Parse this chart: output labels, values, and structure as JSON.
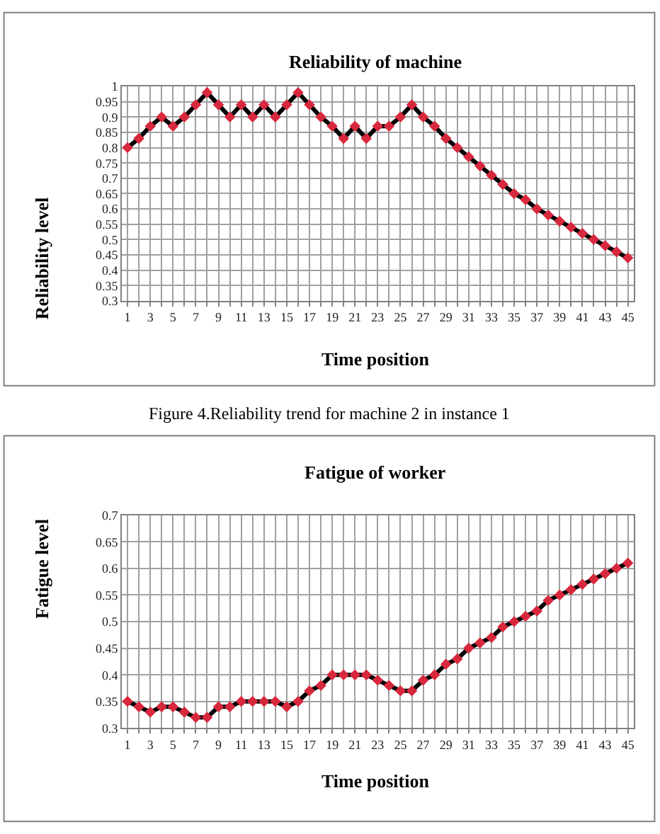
{
  "chart_data": [
    {
      "type": "line",
      "title": "Reliability of machine",
      "xlabel": "Time position",
      "ylabel": "Reliability level",
      "x": [
        1,
        2,
        3,
        4,
        5,
        6,
        7,
        8,
        9,
        10,
        11,
        12,
        13,
        14,
        15,
        16,
        17,
        18,
        19,
        20,
        21,
        22,
        23,
        24,
        25,
        26,
        27,
        28,
        29,
        30,
        31,
        32,
        33,
        34,
        35,
        36,
        37,
        38,
        39,
        40,
        41,
        42,
        43,
        44,
        45
      ],
      "series": [
        {
          "color": "#d8283e",
          "values": [
            0.8,
            0.83,
            0.87,
            0.9,
            0.87,
            0.9,
            0.94,
            0.98,
            0.94,
            0.9,
            0.94,
            0.9,
            0.94,
            0.9,
            0.94,
            0.98,
            0.94,
            0.9,
            0.87,
            0.83,
            0.87,
            0.83,
            0.87,
            0.87,
            0.9,
            0.94,
            0.9,
            0.87,
            0.83,
            0.8,
            0.77,
            0.74,
            0.71,
            0.68,
            0.65,
            0.63,
            0.6,
            0.58,
            0.56,
            0.54,
            0.52,
            0.5,
            0.48,
            0.46,
            0.44
          ]
        }
      ],
      "xlim": [
        0.5,
        45.5
      ],
      "xticks": [
        1,
        {
          "value": 2,
          "label": null
        },
        3,
        {
          "value": 4,
          "label": null
        },
        5,
        {
          "value": 6,
          "label": null
        },
        7,
        {
          "value": 8,
          "label": null
        },
        9,
        {
          "value": 10,
          "label": null
        },
        11,
        {
          "value": 12,
          "label": null
        },
        13,
        {
          "value": 14,
          "label": null
        },
        15,
        {
          "value": 16,
          "label": null
        },
        17,
        {
          "value": 18,
          "label": null
        },
        19,
        {
          "value": 20,
          "label": null
        },
        21,
        {
          "value": 22,
          "label": null
        },
        23,
        {
          "value": 24,
          "label": null
        },
        25,
        {
          "value": 26,
          "label": null
        },
        27,
        {
          "value": 28,
          "label": null
        },
        29,
        {
          "value": 30,
          "label": null
        },
        31,
        {
          "value": 32,
          "label": null
        },
        33,
        {
          "value": 34,
          "label": null
        },
        35,
        {
          "value": 36,
          "label": null
        },
        37,
        {
          "value": 38,
          "label": null
        },
        39,
        {
          "value": 40,
          "label": null
        },
        41,
        {
          "value": 42,
          "label": null
        },
        43,
        {
          "value": 44,
          "label": null
        },
        45
      ],
      "ylim": [
        0.3,
        1
      ],
      "yticks": [
        0.3,
        0.35,
        0.4,
        0.45,
        0.5,
        0.55,
        0.6,
        0.65,
        0.7,
        0.75,
        0.8,
        0.85,
        0.9,
        0.95,
        1
      ],
      "grid": true,
      "marker": "diamond",
      "line_style": "solid",
      "annotations": [
        "Figure 4.Reliability trend for machine 2 in instance 1"
      ]
    },
    {
      "type": "line",
      "title": "Fatigue of worker",
      "xlabel": "Time position",
      "ylabel": "Fatigue level",
      "x": [
        1,
        2,
        3,
        4,
        5,
        6,
        7,
        8,
        9,
        10,
        11,
        12,
        13,
        14,
        15,
        16,
        17,
        18,
        19,
        20,
        21,
        22,
        23,
        24,
        25,
        26,
        27,
        28,
        29,
        30,
        31,
        32,
        33,
        34,
        35,
        36,
        37,
        38,
        39,
        40,
        41,
        42,
        43,
        44,
        45
      ],
      "series": [
        {
          "color": "#d8283e",
          "values": [
            0.35,
            0.34,
            0.33,
            0.34,
            0.34,
            0.33,
            0.32,
            0.32,
            0.34,
            0.34,
            0.35,
            0.35,
            0.35,
            0.35,
            0.34,
            0.35,
            0.37,
            0.38,
            0.4,
            0.4,
            0.4,
            0.4,
            0.39,
            0.38,
            0.37,
            0.37,
            0.39,
            0.4,
            0.42,
            0.43,
            0.45,
            0.46,
            0.47,
            0.49,
            0.5,
            0.51,
            0.52,
            0.54,
            0.55,
            0.56,
            0.57,
            0.58,
            0.59,
            0.6,
            0.61
          ]
        }
      ],
      "xlim": [
        0.5,
        45.5
      ],
      "xticks": [
        1,
        {
          "value": 2,
          "label": null
        },
        3,
        {
          "value": 4,
          "label": null
        },
        5,
        {
          "value": 6,
          "label": null
        },
        7,
        {
          "value": 8,
          "label": null
        },
        9,
        {
          "value": 10,
          "label": null
        },
        11,
        {
          "value": 12,
          "label": null
        },
        13,
        {
          "value": 14,
          "label": null
        },
        15,
        {
          "value": 16,
          "label": null
        },
        17,
        {
          "value": 18,
          "label": null
        },
        19,
        {
          "value": 20,
          "label": null
        },
        21,
        {
          "value": 22,
          "label": null
        },
        23,
        {
          "value": 24,
          "label": null
        },
        25,
        {
          "value": 26,
          "label": null
        },
        27,
        {
          "value": 28,
          "label": null
        },
        29,
        {
          "value": 30,
          "label": null
        },
        31,
        {
          "value": 32,
          "label": null
        },
        33,
        {
          "value": 34,
          "label": null
        },
        35,
        {
          "value": 36,
          "label": null
        },
        37,
        {
          "value": 38,
          "label": null
        },
        39,
        {
          "value": 40,
          "label": null
        },
        41,
        {
          "value": 42,
          "label": null
        },
        43,
        {
          "value": 44,
          "label": null
        },
        45
      ],
      "ylim": [
        0.3,
        0.7
      ],
      "yticks": [
        0.3,
        0.35,
        0.4,
        0.45,
        0.5,
        0.55,
        0.6,
        0.65,
        0.7
      ],
      "grid": true,
      "marker": "diamond",
      "line_style": "solid"
    }
  ]
}
